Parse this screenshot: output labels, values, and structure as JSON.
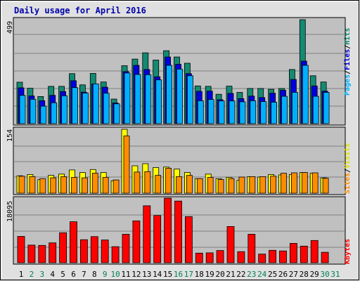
{
  "chart_data": [
    {
      "type": "bar",
      "title": "Daily usage for April 2016",
      "panel": "pages-files-hits",
      "ymax_label": "499",
      "categories": [
        "1",
        "2",
        "3",
        "4",
        "5",
        "6",
        "7",
        "8",
        "9",
        "10",
        "11",
        "12",
        "13",
        "14",
        "15",
        "16",
        "17",
        "18",
        "19",
        "20",
        "21",
        "22",
        "23",
        "24",
        "25",
        "26",
        "27",
        "28",
        "29",
        "30",
        "31"
      ],
      "series": [
        {
          "name": "Hits",
          "color": "#138a72",
          "values": [
            199,
            170,
            130,
            179,
            179,
            240,
            186,
            241,
            200,
            118,
            278,
            310,
            340,
            305,
            350,
            320,
            290,
            181,
            179,
            141,
            180,
            150,
            169,
            169,
            165,
            169,
            260,
            499,
            230,
            200,
            0
          ]
        },
        {
          "name": "Files",
          "color": "#0000dd",
          "values": [
            172,
            133,
            110,
            136,
            154,
            206,
            151,
            191,
            175,
            99,
            250,
            280,
            260,
            225,
            320,
            285,
            240,
            155,
            156,
            115,
            145,
            120,
            132,
            125,
            146,
            160,
            212,
            300,
            181,
            156,
            0
          ]
        },
        {
          "name": "Pages",
          "color": "#00b0ff",
          "values": [
            136,
            117,
            84,
            100,
            134,
            173,
            147,
            191,
            146,
            95,
            243,
            236,
            235,
            210,
            280,
            262,
            230,
            110,
            116,
            109,
            109,
            105,
            110,
            106,
            103,
            131,
            150,
            280,
            131,
            150,
            0
          ]
        }
      ],
      "ylim": [
        0,
        499
      ],
      "grid": true
    },
    {
      "type": "bar",
      "panel": "visits-sites",
      "ymax_label": "154",
      "categories": [
        "1",
        "2",
        "3",
        "4",
        "5",
        "6",
        "7",
        "8",
        "9",
        "10",
        "11",
        "12",
        "13",
        "14",
        "15",
        "16",
        "17",
        "18",
        "19",
        "20",
        "21",
        "22",
        "23",
        "24",
        "25",
        "26",
        "27",
        "28",
        "29",
        "30",
        "31"
      ],
      "series": [
        {
          "name": "Visits",
          "color": "#ffff00",
          "values": [
            42,
            45,
            33,
            43,
            46,
            56,
            50,
            57,
            50,
            30,
            154,
            66,
            71,
            62,
            63,
            58,
            50,
            35,
            46,
            35,
            38,
            31,
            40,
            39,
            45,
            44,
            45,
            50,
            48,
            37,
            0
          ]
        },
        {
          "name": "Sites",
          "color": "#ff8c00",
          "values": [
            41,
            40,
            35,
            37,
            40,
            38,
            37,
            48,
            38,
            32,
            138,
            51,
            52,
            43,
            60,
            40,
            43,
            35,
            38,
            33,
            35,
            39,
            40,
            40,
            41,
            48,
            49,
            50,
            49,
            36,
            0
          ]
        }
      ],
      "ylim": [
        0,
        154
      ],
      "grid": true
    },
    {
      "type": "bar",
      "panel": "kbytes",
      "ymax_label": "18095",
      "categories": [
        "1",
        "2",
        "3",
        "4",
        "5",
        "6",
        "7",
        "8",
        "9",
        "10",
        "11",
        "12",
        "13",
        "14",
        "15",
        "16",
        "17",
        "18",
        "19",
        "20",
        "21",
        "22",
        "23",
        "24",
        "25",
        "26",
        "27",
        "28",
        "29",
        "30",
        "31"
      ],
      "series": [
        {
          "name": "KBytes",
          "color": "#ff0000",
          "values": [
            7370,
            4940,
            4860,
            5570,
            8390,
            11480,
            6450,
            7320,
            6380,
            4510,
            7970,
            11720,
            15950,
            13210,
            18095,
            17270,
            12930,
            2690,
            2780,
            3420,
            10140,
            3100,
            7990,
            2420,
            3480,
            3300,
            5420,
            4670,
            6230,
            2930,
            0
          ]
        }
      ],
      "ylim": [
        0,
        18095
      ],
      "grid": true
    }
  ],
  "axis_labels": {
    "hits": "Hits",
    "files": "Files",
    "pages": "Pages",
    "visits": "Visits",
    "sites": "Sites",
    "kbytes": "KBytes",
    "sep": "/"
  },
  "weekend_days": [
    2,
    3,
    9,
    10,
    16,
    17,
    23,
    24,
    30,
    31
  ],
  "colors": {
    "plot_bg": "#c0c0c0",
    "weekday_label": "#000000",
    "weekend_label": "#00805a",
    "title": "#0000aa"
  }
}
